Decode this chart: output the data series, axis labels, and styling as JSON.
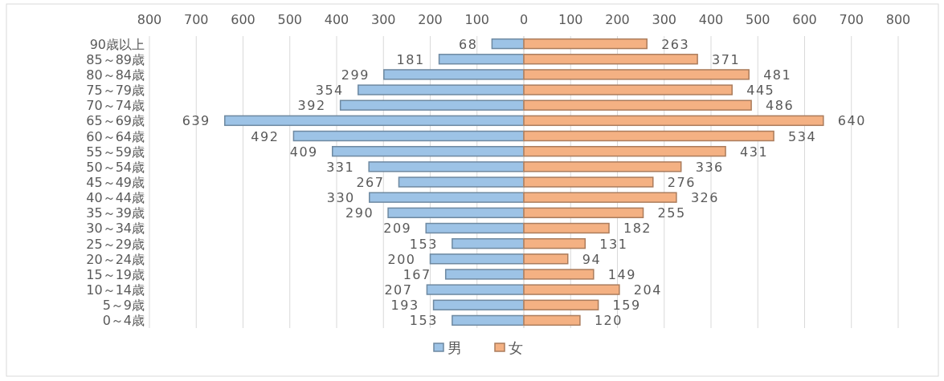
{
  "chart_data": [
    {
      "type": "bar",
      "orientation": "horizontal",
      "categories": [
        "90歳以上",
        "85～89歳",
        "80～84歳",
        "75～79歳",
        "70～74歳",
        "65～69歳",
        "60～64歳",
        "55～59歳",
        "50～54歳",
        "45～49歳",
        "40～44歳",
        "35～39歳",
        "30～34歳",
        "25～29歳",
        "20～24歳",
        "15～19歳",
        "10～14歳",
        "5～9歳",
        "0～4歳"
      ],
      "series": [
        {
          "name": "男",
          "color": "#9dc3e6",
          "values": [
            68,
            181,
            299,
            354,
            392,
            639,
            492,
            409,
            331,
            267,
            330,
            290,
            209,
            153,
            200,
            167,
            207,
            193,
            153
          ]
        }
      ],
      "xlim": [
        800,
        0
      ],
      "xticks": [
        800,
        700,
        600,
        500,
        400,
        300,
        200,
        100,
        0
      ],
      "data_labels": true,
      "grid": "x",
      "legend": "bottom"
    },
    {
      "type": "bar",
      "orientation": "horizontal",
      "categories": [
        null,
        null,
        null,
        null,
        null,
        null,
        null,
        null,
        null,
        null,
        null,
        null,
        null,
        null,
        null,
        null,
        null,
        null,
        null
      ],
      "series": [
        {
          "name": "女",
          "color": "#f4b183",
          "values": [
            263,
            371,
            481,
            445,
            486,
            640,
            534,
            431,
            336,
            276,
            326,
            255,
            182,
            131,
            94,
            149,
            204,
            159,
            120
          ]
        }
      ],
      "xlim": [
        0,
        800
      ],
      "xticks": [
        {
          "value": 0,
          "label": null
        },
        100,
        200,
        300,
        400,
        500,
        600,
        700,
        800
      ],
      "data_labels": true,
      "grid": "x",
      "legend": "bottom",
      "tick_labels": "x"
    }
  ]
}
